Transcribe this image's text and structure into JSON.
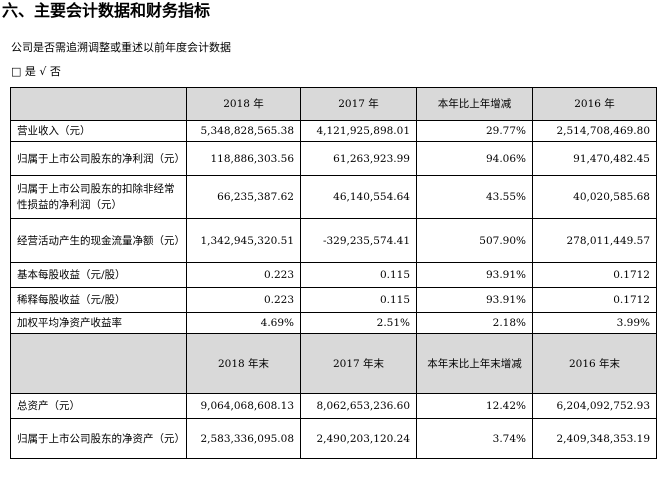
{
  "title": "六、主要会计数据和财务指标",
  "intro": "公司是否需追溯调整或重述以前年度会计数据",
  "options": {
    "yes_box": "□",
    "yes_label": "是",
    "no_mark": "√",
    "no_label": "否"
  },
  "table1": {
    "headers": [
      "2018 年",
      "2017 年",
      "本年比上年增减",
      "2016 年"
    ],
    "rows": [
      {
        "label": "营业收入（元）",
        "v2018": "5,348,828,565.38",
        "v2017": "4,121,925,898.01",
        "change": "29.77%",
        "v2016": "2,514,708,469.80"
      },
      {
        "label": "归属于上市公司股东的净利润（元）",
        "v2018": "118,886,303.56",
        "v2017": "61,263,923.99",
        "change": "94.06%",
        "v2016": "91,470,482.45"
      },
      {
        "label": "归属于上市公司股东的扣除非经常性损益的净利润（元）",
        "v2018": "66,235,387.62",
        "v2017": "46,140,554.64",
        "change": "43.55%",
        "v2016": "40,020,585.68"
      },
      {
        "label": "经营活动产生的现金流量净额（元）",
        "v2018": "1,342,945,320.51",
        "v2017": "-329,235,574.41",
        "change": "507.90%",
        "v2016": "278,011,449.57"
      },
      {
        "label": "基本每股收益（元/股）",
        "v2018": "0.223",
        "v2017": "0.115",
        "change": "93.91%",
        "v2016": "0.1712"
      },
      {
        "label": "稀释每股收益（元/股）",
        "v2018": "0.223",
        "v2017": "0.115",
        "change": "93.91%",
        "v2016": "0.1712"
      },
      {
        "label": "加权平均净资产收益率",
        "v2018": "4.69%",
        "v2017": "2.51%",
        "change": "2.18%",
        "v2016": "3.99%"
      }
    ]
  },
  "table2": {
    "headers": [
      "2018 年末",
      "2017 年末",
      "本年末比上年末增减",
      "2016 年末"
    ],
    "rows": [
      {
        "label": "总资产（元）",
        "v2018": "9,064,068,608.13",
        "v2017": "8,062,653,236.60",
        "change": "12.42%",
        "v2016": "6,204,092,752.93"
      },
      {
        "label": "归属于上市公司股东的净资产（元）",
        "v2018": "2,583,336,095.08",
        "v2017": "2,490,203,120.24",
        "change": "3.74%",
        "v2016": "2,409,348,353.19"
      }
    ]
  }
}
